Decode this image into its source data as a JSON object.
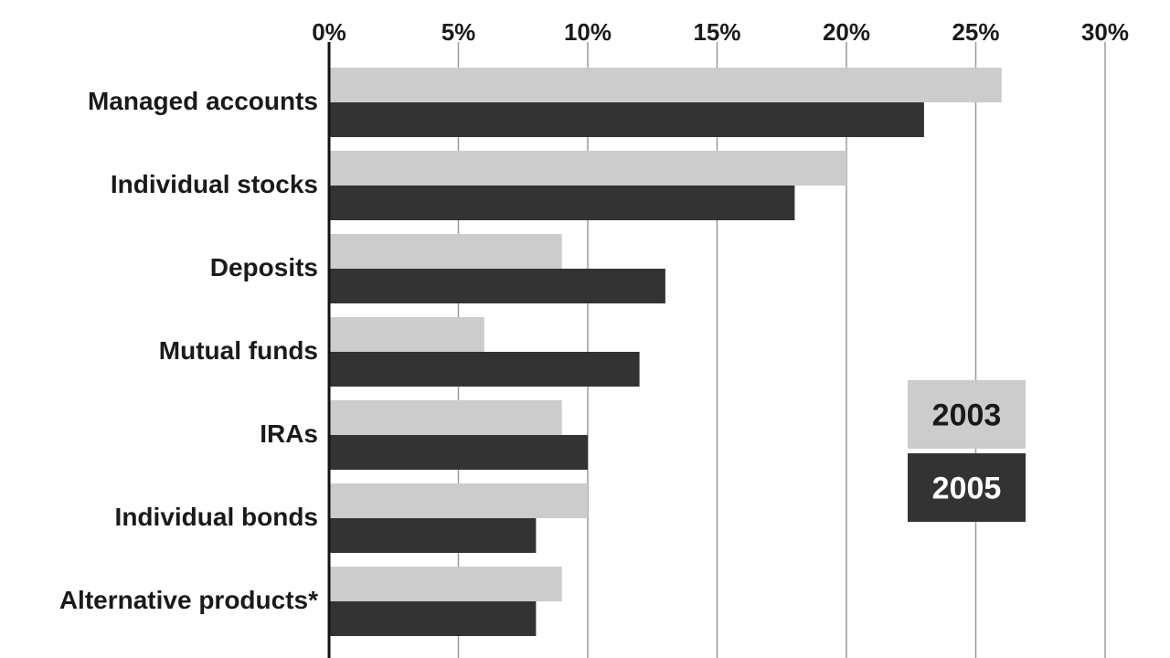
{
  "chart_data": {
    "type": "bar",
    "orientation": "horizontal",
    "title": "",
    "xlabel": "",
    "ylabel": "",
    "xlim": [
      0,
      30
    ],
    "x_ticks": [
      "0%",
      "5%",
      "10%",
      "15%",
      "20%",
      "25%",
      "30%"
    ],
    "x_tick_values": [
      0,
      5,
      10,
      15,
      20,
      25,
      30
    ],
    "categories": [
      "Managed accounts",
      "Individual stocks",
      "Deposits",
      "Mutual funds",
      "IRAs",
      "Individual bonds",
      "Alternative products*"
    ],
    "series": [
      {
        "name": "2003",
        "color": "#cccccc",
        "text_color": "#1a1a1a",
        "values": [
          26,
          20,
          9,
          6,
          9,
          10,
          9
        ]
      },
      {
        "name": "2005",
        "color": "#333333",
        "text_color": "#ffffff",
        "values": [
          23,
          18,
          13,
          12,
          10,
          8,
          8
        ]
      }
    ],
    "grid": true,
    "axis_position": "top",
    "legend_position": "right"
  }
}
